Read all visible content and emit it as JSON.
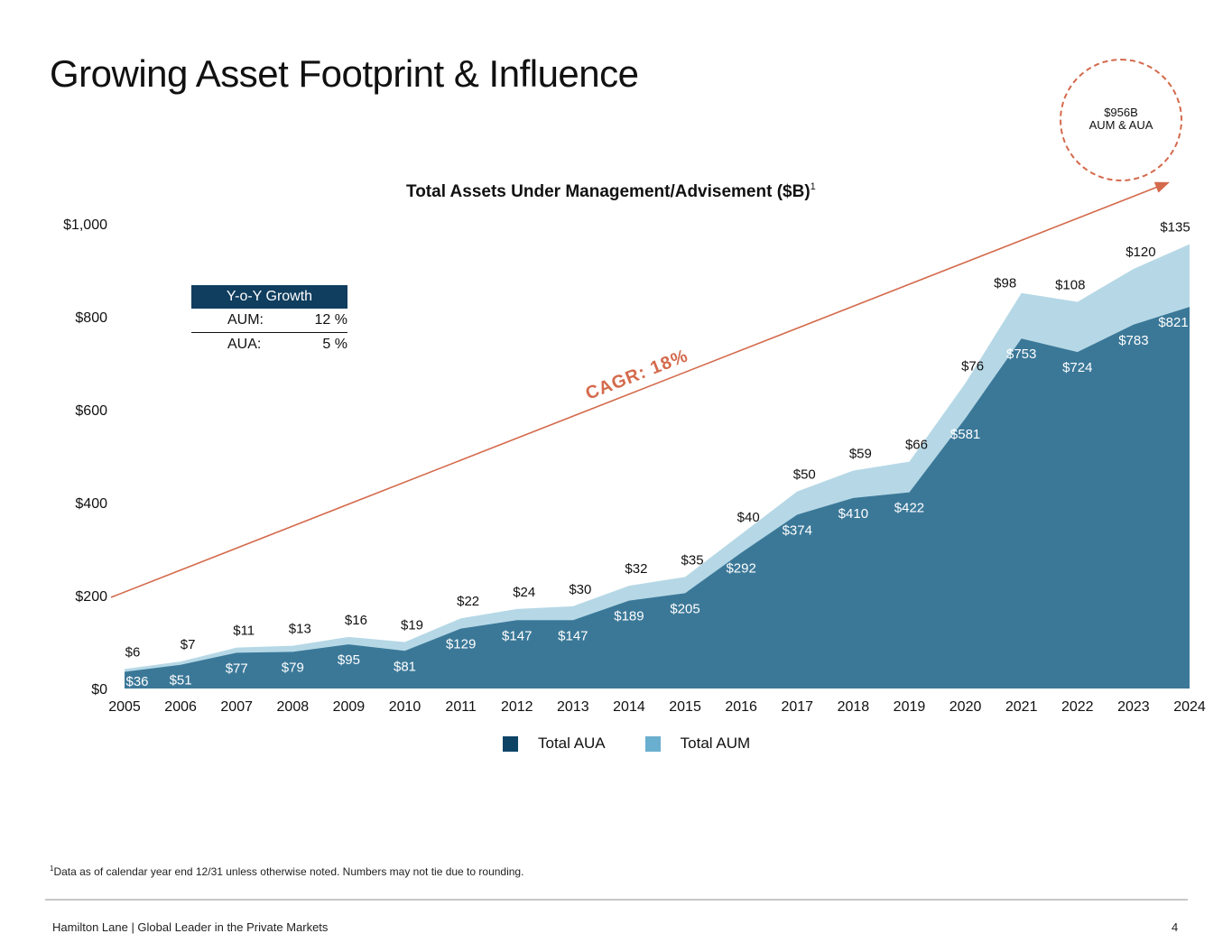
{
  "page": {
    "title": "Growing Asset Footprint & Influence",
    "footnote_mark": "1",
    "footnote": "Data as of calendar year end 12/31 unless otherwise noted. Numbers may not tie due to rounding.",
    "footer_left": "Hamilton Lane  |  Global Leader in the Private Markets",
    "page_number": "4"
  },
  "bubble": {
    "line1": "$956B",
    "line2": "AUM & AUA"
  },
  "yoy_table": {
    "header": "Y-o-Y Growth",
    "rows": [
      {
        "label": "AUM:",
        "value": "12 %"
      },
      {
        "label": "AUA:",
        "value": "5 %"
      }
    ]
  },
  "chart_data": {
    "type": "area",
    "title": "Total Assets Under Management/Advisement ($B)",
    "title_superscript": "1",
    "stacked": true,
    "x": [
      "2005",
      "2006",
      "2007",
      "2008",
      "2009",
      "2010",
      "2011",
      "2012",
      "2013",
      "2014",
      "2015",
      "2016",
      "2017",
      "2018",
      "2019",
      "2020",
      "2021",
      "2022",
      "2023",
      "2024"
    ],
    "y_ticks": [
      "$0",
      "$200",
      "$400",
      "$600",
      "$800",
      "$1,000"
    ],
    "ylim": [
      0,
      1000
    ],
    "series": [
      {
        "name": "Total AUA",
        "color": "#3b7898",
        "values": [
          36,
          51,
          77,
          79,
          95,
          81,
          129,
          147,
          147,
          189,
          205,
          292,
          374,
          410,
          422,
          581,
          753,
          724,
          783,
          821
        ],
        "labels": [
          "$36",
          "$51",
          "$77",
          "$79",
          "$95",
          "$81",
          "$129",
          "$147",
          "$147",
          "$189",
          "$205",
          "$292",
          "$374",
          "$410",
          "$422",
          "$581",
          "$753",
          "$724",
          "$783",
          "$821"
        ]
      },
      {
        "name": "Total AUM",
        "color": "#b6d8e6",
        "values": [
          6,
          7,
          11,
          13,
          16,
          19,
          22,
          24,
          30,
          32,
          35,
          40,
          50,
          59,
          66,
          76,
          98,
          108,
          120,
          135
        ],
        "labels": [
          "$6",
          "$7",
          "$11",
          "$13",
          "$16",
          "$19",
          "$22",
          "$24",
          "$30",
          "$32",
          "$35",
          "$40",
          "$50",
          "$59",
          "$66",
          "$76",
          "$98",
          "$108",
          "$120",
          "$135"
        ]
      }
    ],
    "legend": [
      {
        "name": "Total AUA",
        "color": "#0d4466"
      },
      {
        "name": "Total AUM",
        "color": "#6aaed0"
      }
    ],
    "legend_placement": "bottom",
    "annotation": {
      "text": "CAGR: 18%",
      "color": "#d46a4c"
    },
    "grid": false
  }
}
